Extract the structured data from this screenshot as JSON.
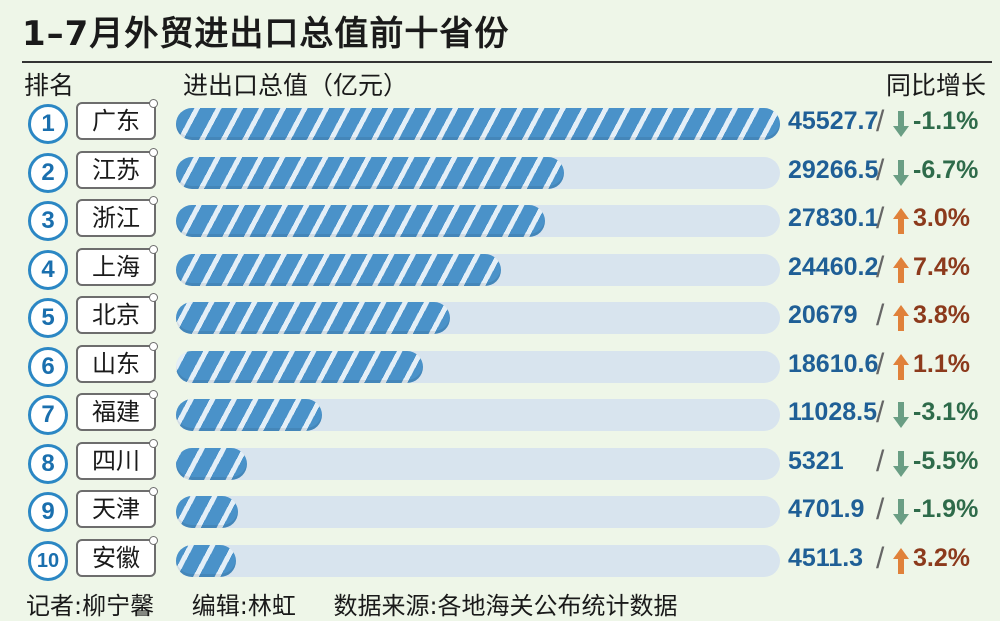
{
  "title": "1–7月外贸进出口总值前十省份",
  "headers": {
    "rank": "排名",
    "value": "进出口总值（亿元）",
    "growth": "同比增长"
  },
  "colors": {
    "bar": "#4a92c9",
    "track": "#d8e4ee",
    "up_arrow": "#e0813a",
    "down_arrow": "#6a9e84",
    "value_text": "#1f5f96"
  },
  "chart_data": {
    "type": "bar",
    "orientation": "horizontal",
    "title": "1–7月外贸进出口总值前十省份",
    "xlabel": "进出口总值（亿元）",
    "categories": [
      "广东",
      "江苏",
      "浙江",
      "上海",
      "北京",
      "山东",
      "福建",
      "四川",
      "天津",
      "安徽"
    ],
    "ranks": [
      "1",
      "2",
      "3",
      "4",
      "5",
      "6",
      "7",
      "8",
      "9",
      "10"
    ],
    "values": [
      45527.7,
      29266.5,
      27830.1,
      24460.2,
      20679,
      18610.6,
      11028.5,
      5321,
      4701.9,
      4511.3
    ],
    "value_labels": [
      "45527.7",
      "29266.5",
      "27830.1",
      "24460.2",
      "20679",
      "18610.6",
      "11028.5",
      "5321",
      "4701.9",
      "4511.3"
    ],
    "growth": [
      -1.1,
      -6.7,
      3.0,
      7.4,
      3.8,
      1.1,
      -3.1,
      -5.5,
      -1.9,
      3.2
    ],
    "growth_labels": [
      "-1.1%",
      "-6.7%",
      "3.0%",
      "7.4%",
      "3.8%",
      "1.1%",
      "-3.1%",
      "-5.5%",
      "-1.9%",
      "3.2%"
    ],
    "growth_header": "同比增长",
    "grid": false,
    "legend": "none"
  },
  "footer": {
    "reporter": "记者:柳宁馨",
    "editor": "编辑:林虹",
    "source": "数据来源:各地海关公布统计数据"
  }
}
